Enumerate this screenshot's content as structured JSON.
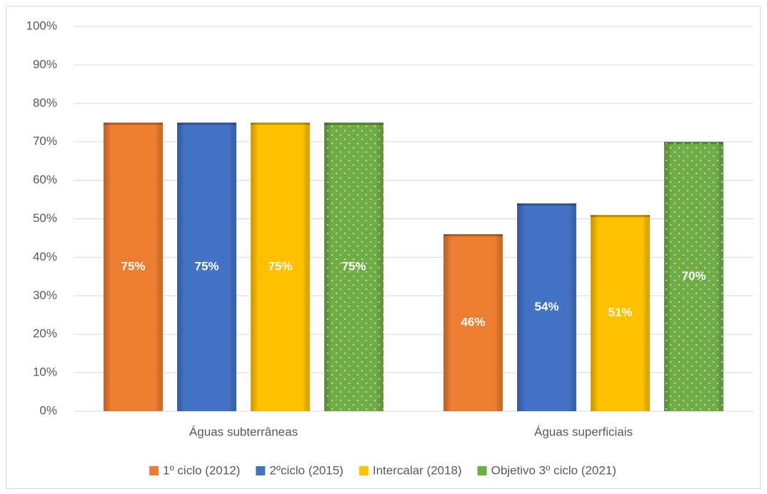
{
  "chart_data": {
    "type": "bar",
    "categories": [
      "Águas subterrâneas",
      "Águas superficiais"
    ],
    "series": [
      {
        "name": "1º ciclo (2012)",
        "color": "#ed7d31",
        "values": [
          75,
          46
        ],
        "value_labels": [
          "75%",
          "46%"
        ]
      },
      {
        "name": "2ºciclo (2015)",
        "color": "#4472c4",
        "values": [
          75,
          54
        ],
        "value_labels": [
          "75%",
          "54%"
        ]
      },
      {
        "name": "Intercalar (2018)",
        "color": "#ffc000",
        "values": [
          75,
          51
        ],
        "value_labels": [
          "75%",
          "51%"
        ]
      },
      {
        "name": "Objetivo 3º ciclo (2021)",
        "color": "#70ad47",
        "values": [
          75,
          70
        ],
        "value_labels": [
          "75%",
          "70%"
        ]
      }
    ],
    "ylim": [
      0,
      100
    ],
    "yticks": [
      {
        "value": 0,
        "label": "0%"
      },
      {
        "value": 10,
        "label": "10%"
      },
      {
        "value": 20,
        "label": "20%"
      },
      {
        "value": 30,
        "label": "30%"
      },
      {
        "value": 40,
        "label": "40%"
      },
      {
        "value": 50,
        "label": "50%"
      },
      {
        "value": 60,
        "label": "60%"
      },
      {
        "value": 70,
        "label": "70%"
      },
      {
        "value": 80,
        "label": "80%"
      },
      {
        "value": 90,
        "label": "90%"
      },
      {
        "value": 100,
        "label": "100%"
      }
    ],
    "grid": true,
    "legend": "bottom"
  }
}
